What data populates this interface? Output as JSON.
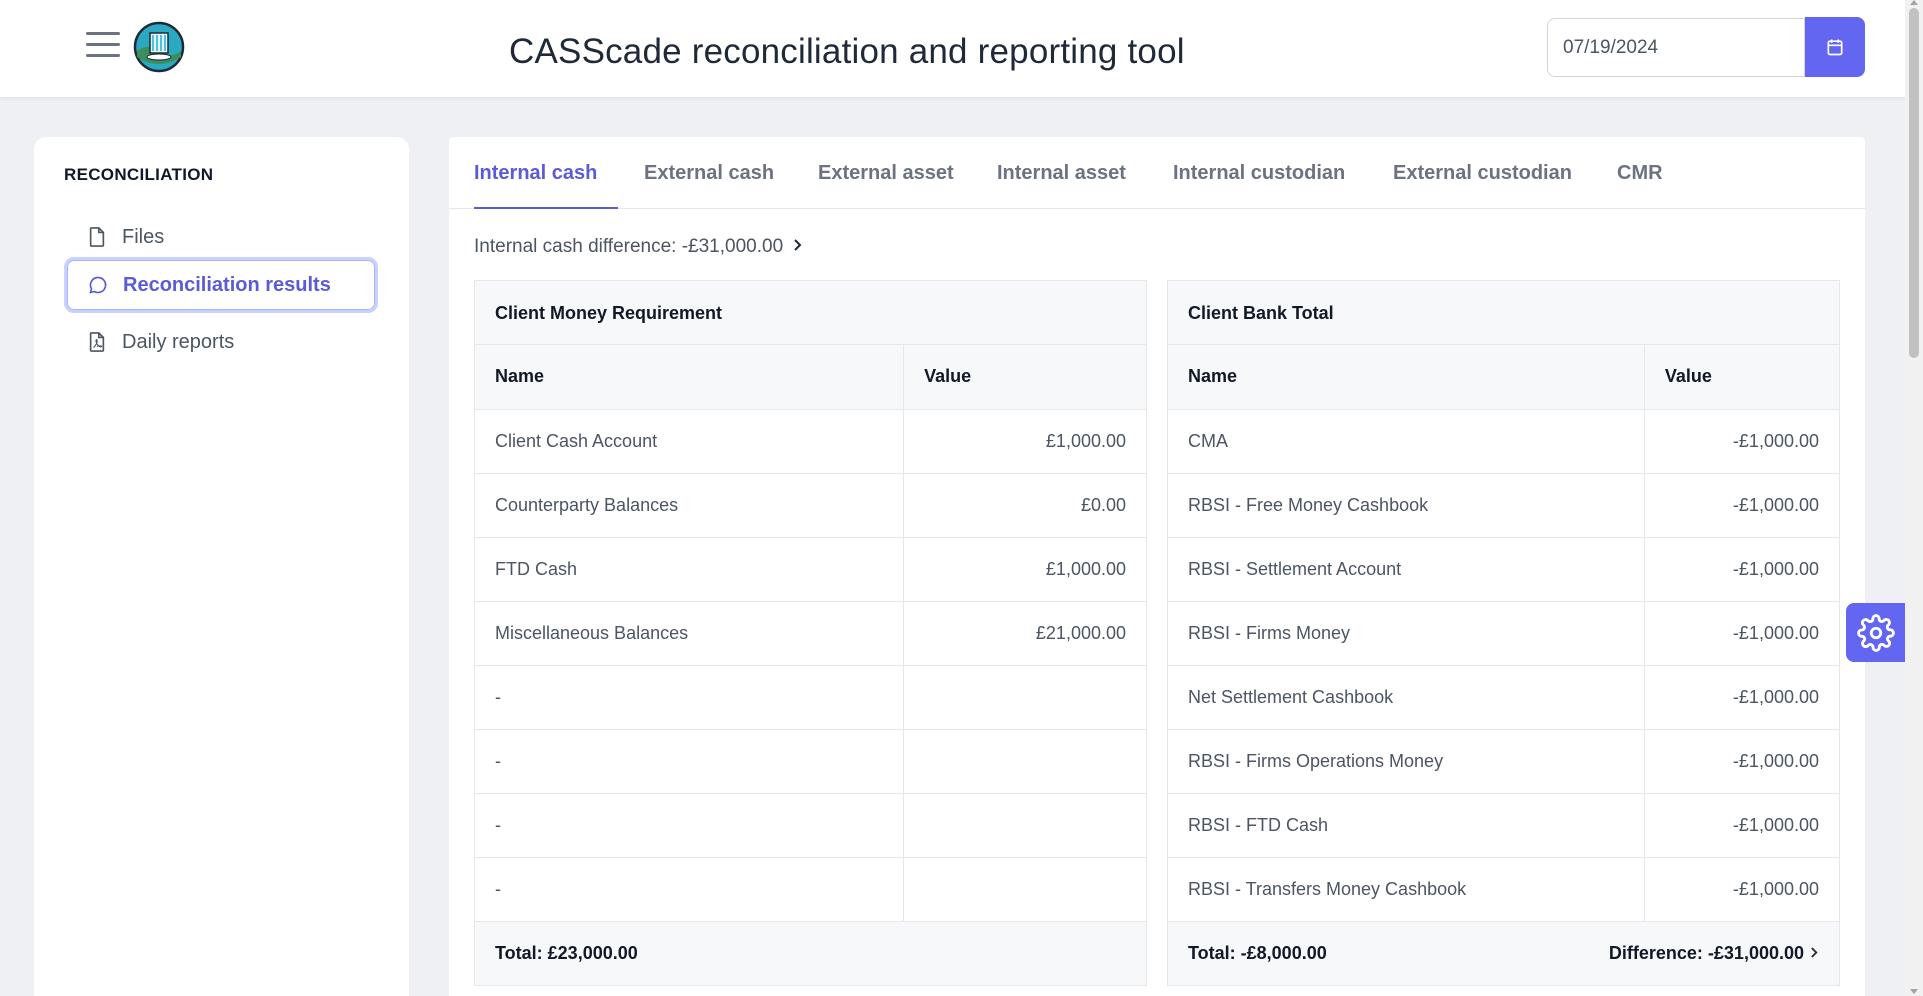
{
  "header": {
    "title": "CASScade reconciliation and reporting tool",
    "date_value": "07/19/2024"
  },
  "sidebar": {
    "section": "RECONCILIATION",
    "items": [
      {
        "label": "Files",
        "icon": "file-icon"
      },
      {
        "label": "Reconciliation results",
        "icon": "chat-icon",
        "active": true
      },
      {
        "label": "Daily reports",
        "icon": "pdf-icon"
      }
    ]
  },
  "tabs": [
    {
      "label": "Internal cash",
      "active": true
    },
    {
      "label": "External cash"
    },
    {
      "label": "External asset"
    },
    {
      "label": "Internal asset"
    },
    {
      "label": "Internal custodian"
    },
    {
      "label": "External custodian"
    },
    {
      "label": "CMR"
    }
  ],
  "difference_line": "Internal cash difference: -£31,000.00",
  "left_table": {
    "title": "Client Money Requirement",
    "headers": [
      "Name",
      "Value"
    ],
    "rows": [
      [
        "Client Cash Account",
        "£1,000.00"
      ],
      [
        "Counterparty Balances",
        "£0.00"
      ],
      [
        "FTD Cash",
        "£1,000.00"
      ],
      [
        "Miscellaneous Balances",
        "£21,000.00"
      ],
      [
        "-",
        ""
      ],
      [
        "-",
        ""
      ],
      [
        "-",
        ""
      ],
      [
        "-",
        ""
      ]
    ],
    "total": "Total: £23,000.00"
  },
  "right_table": {
    "title": "Client Bank Total",
    "headers": [
      "Name",
      "Value"
    ],
    "rows": [
      [
        "CMA",
        "-£1,000.00"
      ],
      [
        "RBSI - Free Money Cashbook",
        "-£1,000.00"
      ],
      [
        "RBSI - Settlement Account",
        "-£1,000.00"
      ],
      [
        "RBSI - Firms Money",
        "-£1,000.00"
      ],
      [
        "Net Settlement Cashbook",
        "-£1,000.00"
      ],
      [
        "RBSI - Firms Operations Money",
        "-£1,000.00"
      ],
      [
        "RBSI - FTD Cash",
        "-£1,000.00"
      ],
      [
        "RBSI - Transfers Money Cashbook",
        "-£1,000.00"
      ]
    ],
    "total": "Total: -£8,000.00",
    "difference": "Difference: -£31,000.00"
  },
  "colors": {
    "accent": "#6366f1",
    "active_text": "#5b5bd6",
    "background": "#eef0f4"
  }
}
